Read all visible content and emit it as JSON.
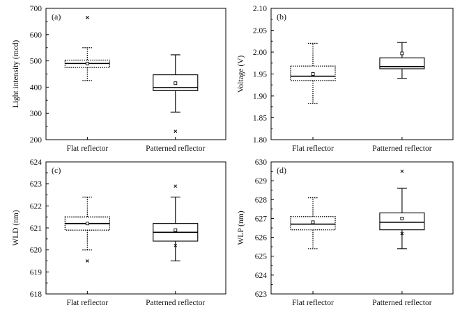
{
  "chart_data": [
    {
      "type": "box",
      "panel_label": "(a)",
      "ylabel": "Light intensity (mcd)",
      "ylim": [
        200,
        700
      ],
      "yticks": [
        200,
        300,
        400,
        500,
        600,
        700
      ],
      "categories": [
        "Flat reflector",
        "Patterned reflector"
      ],
      "boxes": [
        {
          "category": "Flat reflector",
          "whisker_low": 425,
          "q1": 475,
          "median": 490,
          "q3": 503,
          "whisker_high": 550,
          "mean": 490,
          "outliers": [
            665
          ],
          "style": "dotted"
        },
        {
          "category": "Patterned reflector",
          "whisker_low": 305,
          "q1": 387,
          "median": 398,
          "q3": 447,
          "whisker_high": 523,
          "mean": 415,
          "outliers": [
            232
          ],
          "style": "solid"
        }
      ]
    },
    {
      "type": "box",
      "panel_label": "(b)",
      "ylabel": "Voltage (V)",
      "ylim": [
        1.8,
        2.1
      ],
      "yticks": [
        1.8,
        1.85,
        1.9,
        1.95,
        2.0,
        2.05,
        2.1
      ],
      "categories": [
        "Flat reflector",
        "Patterned reflector"
      ],
      "boxes": [
        {
          "category": "Flat reflector",
          "whisker_low": 1.883,
          "q1": 1.935,
          "median": 1.945,
          "q3": 1.968,
          "whisker_high": 2.02,
          "mean": 1.95,
          "outliers": [],
          "style": "dotted"
        },
        {
          "category": "Patterned reflector",
          "whisker_low": 1.94,
          "q1": 1.962,
          "median": 1.967,
          "q3": 1.987,
          "whisker_high": 2.022,
          "mean": 1.997,
          "outliers": [],
          "style": "solid"
        }
      ]
    },
    {
      "type": "box",
      "panel_label": "(c)",
      "ylabel": "WLD (nm)",
      "ylim": [
        618,
        624
      ],
      "yticks": [
        618,
        619,
        620,
        621,
        622,
        623,
        624
      ],
      "categories": [
        "Flat reflector",
        "Patterned reflector"
      ],
      "boxes": [
        {
          "category": "Flat reflector",
          "whisker_low": 620.0,
          "q1": 620.9,
          "median": 621.2,
          "q3": 621.5,
          "whisker_high": 622.4,
          "mean": 621.2,
          "outliers": [
            619.5
          ],
          "style": "dotted"
        },
        {
          "category": "Patterned reflector",
          "whisker_low": 619.5,
          "q1": 620.4,
          "median": 620.8,
          "q3": 621.2,
          "whisker_high": 622.4,
          "mean": 620.9,
          "outliers": [
            622.9,
            620.2
          ],
          "style": "solid"
        }
      ]
    },
    {
      "type": "box",
      "panel_label": "(d)",
      "ylabel": "WLP (nm)",
      "ylim": [
        623,
        630
      ],
      "yticks": [
        623,
        624,
        625,
        626,
        627,
        628,
        629,
        630
      ],
      "categories": [
        "Flat reflector",
        "Patterned reflector"
      ],
      "boxes": [
        {
          "category": "Flat reflector",
          "whisker_low": 625.4,
          "q1": 626.4,
          "median": 626.7,
          "q3": 627.1,
          "whisker_high": 628.1,
          "mean": 626.8,
          "outliers": [],
          "style": "dotted"
        },
        {
          "category": "Patterned reflector",
          "whisker_low": 625.4,
          "q1": 626.4,
          "median": 626.8,
          "q3": 627.3,
          "whisker_high": 628.6,
          "mean": 627.0,
          "outliers": [
            629.5,
            626.2
          ],
          "style": "solid"
        }
      ]
    }
  ]
}
